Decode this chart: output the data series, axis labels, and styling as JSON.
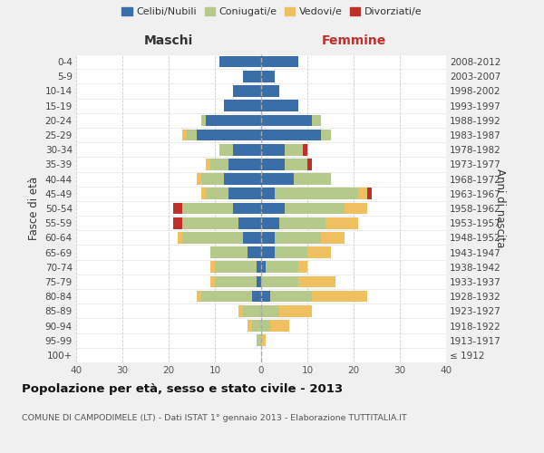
{
  "age_groups": [
    "100+",
    "95-99",
    "90-94",
    "85-89",
    "80-84",
    "75-79",
    "70-74",
    "65-69",
    "60-64",
    "55-59",
    "50-54",
    "45-49",
    "40-44",
    "35-39",
    "30-34",
    "25-29",
    "20-24",
    "15-19",
    "10-14",
    "5-9",
    "0-4"
  ],
  "birth_years": [
    "≤ 1912",
    "1913-1917",
    "1918-1922",
    "1923-1927",
    "1928-1932",
    "1933-1937",
    "1938-1942",
    "1943-1947",
    "1948-1952",
    "1953-1957",
    "1958-1962",
    "1963-1967",
    "1968-1972",
    "1973-1977",
    "1978-1982",
    "1983-1987",
    "1988-1992",
    "1993-1997",
    "1998-2002",
    "2003-2007",
    "2008-2012"
  ],
  "maschi": {
    "celibi": [
      0,
      0,
      0,
      0,
      2,
      1,
      1,
      3,
      4,
      5,
      6,
      7,
      8,
      7,
      6,
      14,
      12,
      8,
      6,
      4,
      9
    ],
    "coniugati": [
      0,
      1,
      2,
      4,
      11,
      9,
      9,
      8,
      13,
      12,
      11,
      5,
      5,
      4,
      3,
      2,
      1,
      0,
      0,
      0,
      0
    ],
    "vedovi": [
      0,
      0,
      1,
      1,
      1,
      1,
      1,
      0,
      1,
      0,
      0,
      1,
      1,
      1,
      0,
      1,
      0,
      0,
      0,
      0,
      0
    ],
    "divorziati": [
      0,
      0,
      0,
      0,
      0,
      0,
      0,
      0,
      0,
      2,
      2,
      0,
      0,
      0,
      0,
      0,
      0,
      0,
      0,
      0,
      0
    ]
  },
  "femmine": {
    "nubili": [
      0,
      0,
      0,
      0,
      2,
      0,
      1,
      3,
      3,
      4,
      5,
      3,
      7,
      5,
      5,
      13,
      11,
      8,
      4,
      3,
      8
    ],
    "coniugate": [
      0,
      0,
      2,
      4,
      9,
      8,
      7,
      7,
      10,
      10,
      13,
      18,
      8,
      5,
      4,
      2,
      2,
      0,
      0,
      0,
      0
    ],
    "vedove": [
      0,
      1,
      4,
      7,
      12,
      8,
      2,
      5,
      5,
      7,
      5,
      2,
      0,
      0,
      0,
      0,
      0,
      0,
      0,
      0,
      0
    ],
    "divorziate": [
      0,
      0,
      0,
      0,
      0,
      0,
      0,
      0,
      0,
      0,
      0,
      1,
      0,
      1,
      1,
      0,
      0,
      0,
      0,
      0,
      0
    ]
  },
  "colors": {
    "celibi_nubili": "#3a6ea8",
    "coniugati": "#b5c98a",
    "vedovi": "#f0c060",
    "divorziati": "#c0302a"
  },
  "xlim": 40,
  "title": "Popolazione per età, sesso e stato civile - 2013",
  "subtitle": "COMUNE DI CAMPODIMELE (LT) - Dati ISTAT 1° gennaio 2013 - Elaborazione TUTTITALIA.IT",
  "xlabel_left": "Maschi",
  "xlabel_right": "Femmine",
  "ylabel_left": "Fasce di età",
  "ylabel_right": "Anni di nascita",
  "legend_labels": [
    "Celibi/Nubili",
    "Coniugati/e",
    "Vedovi/e",
    "Divorziati/e"
  ],
  "bg_color": "#f0f0f0",
  "plot_bg": "#ffffff"
}
